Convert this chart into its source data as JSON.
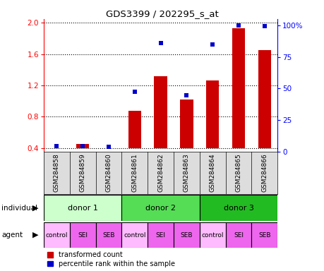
{
  "title": "GDS3399 / 202295_s_at",
  "samples": [
    "GSM284858",
    "GSM284859",
    "GSM284860",
    "GSM284861",
    "GSM284862",
    "GSM284863",
    "GSM284864",
    "GSM284865",
    "GSM284866"
  ],
  "red_values": [
    0.4,
    0.45,
    0.4,
    0.87,
    1.32,
    1.02,
    1.26,
    1.93,
    1.65
  ],
  "blue_values": [
    0.42,
    0.42,
    0.41,
    1.12,
    1.74,
    1.07,
    1.72,
    1.97,
    1.96
  ],
  "ylim_left": [
    0.35,
    2.05
  ],
  "ylim_right": [
    0,
    105
  ],
  "yticks_left": [
    0.4,
    0.8,
    1.2,
    1.6,
    2.0
  ],
  "yticks_right": [
    0,
    25,
    50,
    75,
    100
  ],
  "ytick_labels_right": [
    "0",
    "25",
    "50",
    "75",
    "100%"
  ],
  "donors": [
    {
      "label": "donor 1",
      "span": [
        0,
        3
      ],
      "color": "#ccffcc"
    },
    {
      "label": "donor 2",
      "span": [
        3,
        6
      ],
      "color": "#55dd55"
    },
    {
      "label": "donor 3",
      "span": [
        6,
        9
      ],
      "color": "#22bb22"
    }
  ],
  "agents": [
    "control",
    "SEI",
    "SEB",
    "control",
    "SEI",
    "SEB",
    "control",
    "SEI",
    "SEB"
  ],
  "agent_colors": [
    "#ffbbff",
    "#ee66ee",
    "#ee66ee",
    "#ffbbff",
    "#ee66ee",
    "#ee66ee",
    "#ffbbff",
    "#ee66ee",
    "#ee66ee"
  ],
  "red_color": "#cc0000",
  "blue_color": "#0000cc",
  "bar_width": 0.5,
  "marker_size": 5,
  "individual_label": "individual",
  "agent_label": "agent",
  "legend_red": "transformed count",
  "legend_blue": "percentile rank within the sample",
  "sample_bg": "#dddddd",
  "baseline": 0.4
}
